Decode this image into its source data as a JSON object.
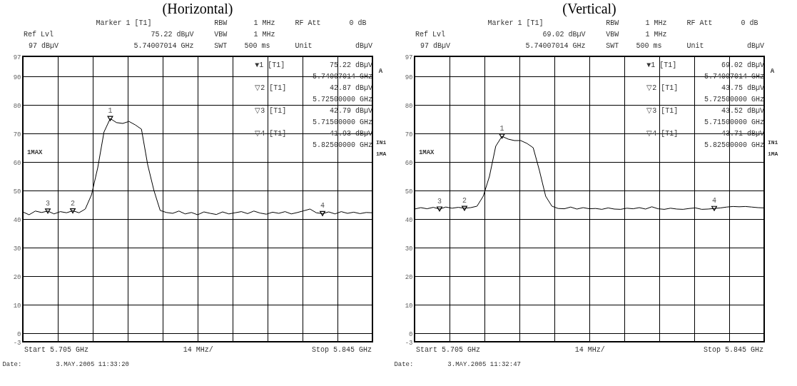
{
  "chart_data": [
    {
      "type": "line",
      "title": "(Horizontal)",
      "ylim": [
        -3,
        97
      ],
      "categories": [
        null,
        null,
        null,
        null,
        null,
        null,
        null,
        null,
        null,
        null,
        null,
        null,
        null,
        null,
        null,
        null,
        null,
        null,
        null,
        null,
        null,
        null,
        null,
        null,
        null,
        null,
        null,
        null,
        null,
        null,
        null,
        null,
        null,
        null,
        null,
        null,
        null,
        null,
        null,
        null,
        null,
        null,
        null,
        null,
        null,
        null,
        null,
        null,
        null,
        null,
        null,
        null,
        null,
        null,
        null,
        null,
        null
      ],
      "yticks": [
        -3,
        0,
        10,
        20,
        30,
        40,
        50,
        60,
        70,
        80,
        90,
        97
      ],
      "tick_labels": "y",
      "grid": true,
      "series": [
        {
          "color": "#000000",
          "values": [
            42.5,
            41.5,
            42.8,
            42.3,
            42.8,
            41.8,
            42.6,
            42.2,
            42.9,
            42.2,
            43.5,
            48.5,
            58,
            70.5,
            75.2,
            73.8,
            73.5,
            74.2,
            73,
            71.5,
            59,
            50,
            43,
            42.3,
            42,
            42.8,
            41.8,
            42.3,
            41.5,
            42.5,
            42,
            41.6,
            42.5,
            41.8,
            42.2,
            42.6,
            41.9,
            42.8,
            42.1,
            41.7,
            42.4,
            42,
            42.6,
            41.8,
            42.3,
            42.9,
            43.5,
            42.2,
            41.9,
            42.5,
            41.8,
            42.6,
            42,
            42.4,
            41.9,
            42.3,
            42.2
          ]
        },
        {
          "type": "scatter",
          "marker": "triangle",
          "color": "#000000",
          "values": [
            null,
            null,
            null,
            null,
            42.79,
            null,
            null,
            null,
            42.87,
            null,
            null,
            null,
            null,
            null,
            75.22,
            null,
            null,
            null,
            null,
            null,
            null,
            null,
            null,
            null,
            null,
            null,
            null,
            null,
            null,
            null,
            null,
            null,
            null,
            null,
            null,
            null,
            null,
            null,
            null,
            null,
            null,
            null,
            null,
            null,
            null,
            null,
            null,
            null,
            41.93,
            null,
            null,
            null,
            null,
            null,
            null,
            null,
            null
          ]
        }
      ],
      "annotations": [
        "Marker 1 [T1]",
        "RBW",
        "1 MHz",
        "RF Att",
        "0 dB",
        "Ref Lvl",
        "75.22 dBµV",
        "VBW",
        "1 MHz",
        "97 dBµV",
        "5.74007014 GHz",
        "SWT",
        "500 ms",
        "Unit",
        "dBµV",
        "▼1  [T1]",
        "75.22 dBµV",
        "5.74007014 GHz",
        "▽2  [T1]",
        "42.87 dBµV",
        "5.72500000 GHz",
        "▽3  [T1]",
        "42.79 dBµV",
        "5.71500000 GHz",
        "▽4  [T1]",
        "41.93 dBµV",
        "5.82500000 GHz",
        "1MAX",
        "IN1",
        "1MA",
        "A",
        "Start 5.705 GHz",
        "14 MHz/",
        "Stop 5.845 GHz",
        "Date:",
        "3.MAY.2005  11:33:20",
        "3",
        "2",
        "1",
        "4"
      ]
    },
    {
      "type": "line",
      "title": "(Vertical)",
      "ylim": [
        -3,
        97
      ],
      "categories": [
        null,
        null,
        null,
        null,
        null,
        null,
        null,
        null,
        null,
        null,
        null,
        null,
        null,
        null,
        null,
        null,
        null,
        null,
        null,
        null,
        null,
        null,
        null,
        null,
        null,
        null,
        null,
        null,
        null,
        null,
        null,
        null,
        null,
        null,
        null,
        null,
        null,
        null,
        null,
        null,
        null,
        null,
        null,
        null,
        null,
        null,
        null,
        null,
        null,
        null,
        null,
        null,
        null,
        null,
        null,
        null,
        null
      ],
      "yticks": [
        -3,
        0,
        10,
        20,
        30,
        40,
        50,
        60,
        70,
        80,
        90,
        97
      ],
      "tick_labels": "y",
      "grid": true,
      "series": [
        {
          "color": "#000000",
          "values": [
            43.5,
            44,
            43.6,
            44.1,
            43.5,
            44.2,
            43.8,
            44.1,
            43.8,
            44,
            44.5,
            48,
            55,
            65.5,
            69,
            68,
            67.5,
            67.5,
            66.5,
            65,
            57,
            48,
            44.5,
            43.7,
            43.6,
            44.2,
            43.5,
            44,
            43.6,
            43.7,
            43.4,
            43.9,
            43.5,
            43.4,
            43.8,
            43.6,
            44,
            43.5,
            44.3,
            43.6,
            43.4,
            43.8,
            43.5,
            43.4,
            43.7,
            43.9,
            43.4,
            43.5,
            43.7,
            43.9,
            44.2,
            44.4,
            44.3,
            44.4,
            44.2,
            44,
            43.9
          ]
        },
        {
          "type": "scatter",
          "marker": "triangle",
          "color": "#000000",
          "values": [
            null,
            null,
            null,
            null,
            43.52,
            null,
            null,
            null,
            43.75,
            null,
            null,
            null,
            null,
            null,
            69.02,
            null,
            null,
            null,
            null,
            null,
            null,
            null,
            null,
            null,
            null,
            null,
            null,
            null,
            null,
            null,
            null,
            null,
            null,
            null,
            null,
            null,
            null,
            null,
            null,
            null,
            null,
            null,
            null,
            null,
            null,
            null,
            null,
            null,
            43.71,
            null,
            null,
            null,
            null,
            null,
            null,
            null,
            null
          ]
        }
      ],
      "annotations": [
        "Marker 1 [T1]",
        "RBW",
        "1 MHz",
        "RF Att",
        "0 dB",
        "Ref Lvl",
        "69.02 dBµV",
        "VBW",
        "1 MHz",
        "97 dBµV",
        "5.74007014 GHz",
        "SWT",
        "500 ms",
        "Unit",
        "dBµV",
        "▼1  [T1]",
        "69.02 dBµV",
        "5.74007014 GHz",
        "▽2  [T1]",
        "43.75 dBµV",
        "5.72500000 GHz",
        "▽3  [T1]",
        "43.52 dBµV",
        "5.71500000 GHz",
        "▽4  [T1]",
        "43.71 dBµV",
        "5.82500000 GHz",
        "1MAX",
        "IN1",
        "1MA",
        "A",
        "Start 5.705 GHz",
        "14 MHz/",
        "Stop 5.845 GHz",
        "Date:",
        "3.MAY.2005  11:32:47",
        "3",
        "2",
        "1",
        "4"
      ]
    }
  ]
}
